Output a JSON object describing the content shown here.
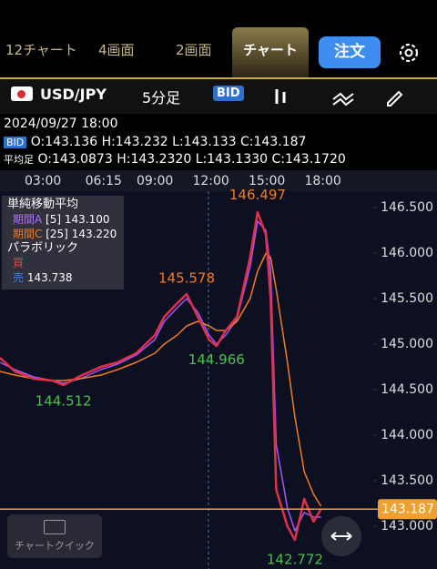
{
  "tabs": [
    "12チャート",
    "4画面",
    "2画面",
    "チャート"
  ],
  "order_button": "注文",
  "toolbar": {
    "pair": "USD/JPY",
    "interval": "5分足",
    "price_type": "BID"
  },
  "info": {
    "datetime": "2024/09/27 18:00",
    "tag": "BID",
    "open": "O:143.136",
    "high": "H:143.232",
    "low": "L:143.133",
    "close": "C:143.187"
  },
  "average": {
    "label": "平均足",
    "open": "O:143.0873",
    "high": "H:143.2320",
    "low": "L:143.1330",
    "close": "C:143.1720"
  },
  "legend": {
    "title": "単純移動平均",
    "a_label": "期間A",
    "a_period": "[5]",
    "a_value": "143.100",
    "c_label": "期間C",
    "c_period": "[25]",
    "c_value": "143.220",
    "sar_title": "パラボリック",
    "sar_buy": "買",
    "sar_sell": "売",
    "sar_sell_value": "143.738"
  },
  "quick_button": "チャートクイック",
  "chart_data": {
    "type": "line",
    "x": [
      0.7,
      1.5,
      2.5,
      3.5,
      4.1,
      5,
      6.1,
      7,
      8,
      9,
      9.5,
      10.2,
      10.7,
      11.3,
      11.9,
      12.3,
      12.8,
      13.4,
      14.1,
      14.5,
      14.95,
      15.2,
      15.5,
      16.1,
      16.5,
      17,
      17.5,
      17.9
    ],
    "xlim": [
      0.7,
      20.7
    ],
    "xticks": [
      {
        "value": 3,
        "label": "03:00"
      },
      {
        "value": 6.25,
        "label": "06:15"
      },
      {
        "value": 9,
        "label": "09:00"
      },
      {
        "value": 12,
        "label": "12:00"
      },
      {
        "value": 15,
        "label": "15:00"
      },
      {
        "value": 18,
        "label": "18:00"
      }
    ],
    "ylim": [
      142.53,
      146.68
    ],
    "yticks": [
      {
        "value": 143,
        "label": "143.000"
      },
      {
        "value": 143.5,
        "label": "143.500"
      },
      {
        "value": 144,
        "label": "144.000"
      },
      {
        "value": 144.5,
        "label": "144.500"
      },
      {
        "value": 145,
        "label": "145.000"
      },
      {
        "value": 145.5,
        "label": "145.500"
      },
      {
        "value": 146,
        "label": "146.000"
      },
      {
        "value": 146.5,
        "label": "146.500"
      }
    ],
    "price": {
      "color": "#e0304a",
      "values": [
        144.85,
        144.7,
        144.62,
        144.6,
        144.55,
        144.65,
        144.75,
        144.8,
        144.9,
        145.1,
        145.3,
        145.45,
        145.55,
        145.3,
        145.05,
        144.98,
        145.15,
        145.3,
        145.95,
        146.45,
        146.2,
        145.5,
        143.4,
        143.0,
        142.85,
        143.3,
        143.05,
        143.19
      ]
    },
    "series": [
      {
        "name": "期間A",
        "color": "#9b59ff",
        "values": [
          144.8,
          144.72,
          144.64,
          144.6,
          144.57,
          144.62,
          144.72,
          144.78,
          144.88,
          145.05,
          145.25,
          145.4,
          145.5,
          145.35,
          145.1,
          145.0,
          145.1,
          145.28,
          145.85,
          146.35,
          146.25,
          145.8,
          143.9,
          143.2,
          142.95,
          143.15,
          143.1,
          143.1
        ]
      },
      {
        "name": "期間C",
        "color": "#f07c28",
        "values": [
          144.7,
          144.66,
          144.62,
          144.6,
          144.6,
          144.62,
          144.66,
          144.72,
          144.8,
          144.9,
          145.0,
          145.1,
          145.2,
          145.25,
          145.2,
          145.15,
          145.15,
          145.25,
          145.5,
          145.8,
          146.0,
          145.95,
          145.6,
          144.8,
          144.2,
          143.6,
          143.35,
          143.22
        ]
      }
    ],
    "annotations": [
      {
        "x": 14.5,
        "value": 146.497,
        "color": "#f07c28"
      },
      {
        "x": 10.7,
        "value": 145.578,
        "color": "#f07c28"
      },
      {
        "x": 12.3,
        "value": 144.966,
        "color": "#4cc04c"
      },
      {
        "x": 4.1,
        "value": 144.512,
        "color": "#4cc04c"
      },
      {
        "x": 16.5,
        "value": 142.772,
        "color": "#4cc04c"
      }
    ],
    "current_price": 143.187,
    "current_color": "#f0a030"
  }
}
